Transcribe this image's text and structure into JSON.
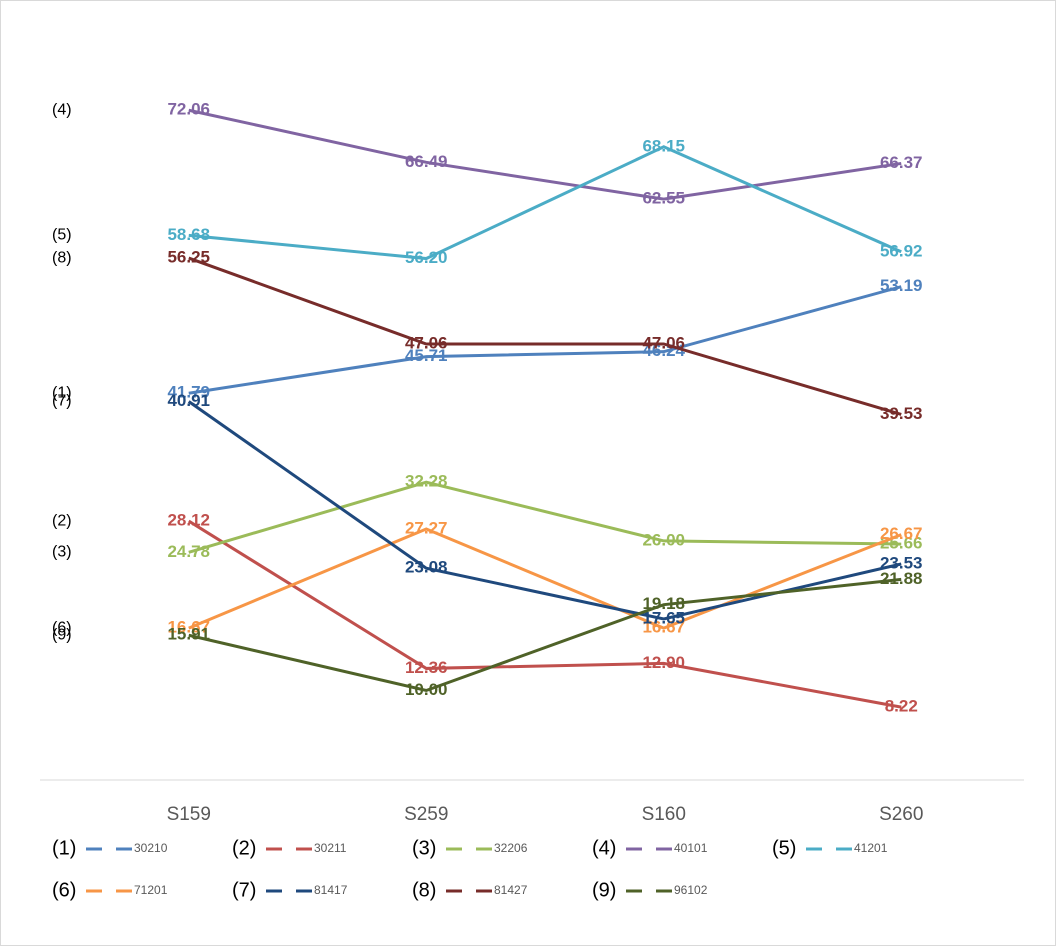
{
  "chart_data": {
    "type": "line",
    "categories": [
      "S159",
      "S259",
      "S160",
      "S260"
    ],
    "ylim": [
      0,
      80
    ],
    "series": [
      {
        "name": "30210",
        "tag": "(1)",
        "color": "#4f81bd",
        "values": [
          41.79,
          45.71,
          46.24,
          53.19
        ],
        "value_labels": [
          "41.79",
          "45.71",
          "46.24",
          "53.19"
        ]
      },
      {
        "name": "30211",
        "tag": "(2)",
        "color": "#c0504d",
        "values": [
          28.12,
          12.36,
          12.9,
          8.22
        ],
        "value_labels": [
          "28.12",
          "12.36",
          "12.90",
          "8.22"
        ]
      },
      {
        "name": "32206",
        "tag": "(3)",
        "color": "#9bbb59",
        "values": [
          24.78,
          32.28,
          26.0,
          25.66
        ],
        "value_labels": [
          "24.78",
          "32.28",
          "26.00",
          "25.66"
        ]
      },
      {
        "name": "40101",
        "tag": "(4)",
        "color": "#8064a2",
        "values": [
          72.06,
          66.49,
          62.55,
          66.37
        ],
        "value_labels": [
          "72.06",
          "66.49",
          "62.55",
          "66.37"
        ]
      },
      {
        "name": "41201",
        "tag": "(5)",
        "color": "#4bacc6",
        "values": [
          58.68,
          56.2,
          68.15,
          56.92
        ],
        "value_labels": [
          "58.68",
          "56.20",
          "68.15",
          "56.92"
        ]
      },
      {
        "name": "71201",
        "tag": "(6)",
        "color": "#f79646",
        "values": [
          16.67,
          27.27,
          16.67,
          26.67
        ],
        "value_labels": [
          "16.67",
          "27.27",
          "16.67",
          "26.67"
        ]
      },
      {
        "name": "81417",
        "tag": "(7)",
        "color": "#1f497d",
        "values": [
          40.91,
          23.08,
          17.65,
          23.53
        ],
        "value_labels": [
          "40.91",
          "23.08",
          "17.65",
          "23.53"
        ]
      },
      {
        "name": "81427",
        "tag": "(8)",
        "color": "#772c2a",
        "values": [
          56.25,
          47.06,
          47.06,
          39.53
        ],
        "value_labels": [
          "56.25",
          "47.06",
          "47.06",
          "39.53"
        ]
      },
      {
        "name": "96102",
        "tag": "(9)",
        "color": "#4f6228",
        "values": [
          15.91,
          10.0,
          19.18,
          21.88
        ],
        "value_labels": [
          "15.91",
          "10.00",
          "19.18",
          "21.88"
        ]
      }
    ]
  }
}
